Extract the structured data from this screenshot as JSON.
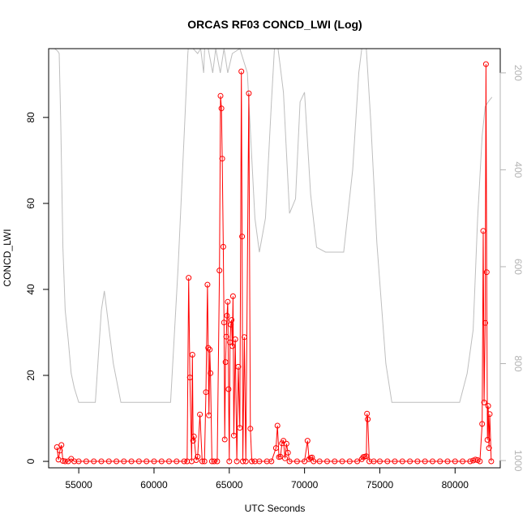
{
  "chart_data": {
    "type": "line",
    "title": "ORCAS RF03 CONCD_LWI (Log)",
    "xlabel": "UTC Seconds",
    "ylabel": "CONCD_LWI",
    "xlim": [
      53000,
      83000
    ],
    "ylim": [
      -1.5,
      96
    ],
    "x_ticks": [
      55000,
      60000,
      65000,
      70000,
      75000,
      80000
    ],
    "y_ticks": [
      0,
      20,
      40,
      60,
      80
    ],
    "y2_ticks": [
      200,
      400,
      600,
      800,
      1000
    ],
    "y2_lim": [
      1015,
      150
    ],
    "grid": false,
    "series": [
      {
        "color": "#ff0000",
        "marker": "open-circle",
        "points": [
          [
            53550,
            3.3
          ],
          [
            53650,
            0.4
          ],
          [
            53750,
            2.5
          ],
          [
            53850,
            3.8
          ],
          [
            53950,
            0.1
          ],
          [
            54100,
            0
          ],
          [
            54300,
            0
          ],
          [
            54500,
            0.6
          ],
          [
            54700,
            0
          ],
          [
            55000,
            0
          ],
          [
            55500,
            0
          ],
          [
            56000,
            0
          ],
          [
            56500,
            0
          ],
          [
            57000,
            0
          ],
          [
            57500,
            0
          ],
          [
            58000,
            0
          ],
          [
            58500,
            0
          ],
          [
            59000,
            0
          ],
          [
            59500,
            0
          ],
          [
            60000,
            0
          ],
          [
            60500,
            0
          ],
          [
            61000,
            0
          ],
          [
            61500,
            0
          ],
          [
            62000,
            0
          ],
          [
            62200,
            0
          ],
          [
            62300,
            42.7
          ],
          [
            62380,
            19.5
          ],
          [
            62500,
            0
          ],
          [
            62550,
            24.8
          ],
          [
            62600,
            4.8
          ],
          [
            62650,
            5.8
          ],
          [
            62800,
            0.3
          ],
          [
            62900,
            1.1
          ],
          [
            63050,
            10.9
          ],
          [
            63200,
            0
          ],
          [
            63350,
            0
          ],
          [
            63450,
            16.1
          ],
          [
            63550,
            41.1
          ],
          [
            63600,
            26.4
          ],
          [
            63650,
            10.7
          ],
          [
            63700,
            26.0
          ],
          [
            63750,
            20.5
          ],
          [
            63850,
            0
          ],
          [
            64000,
            0
          ],
          [
            64200,
            0
          ],
          [
            64350,
            44.4
          ],
          [
            64420,
            85.0
          ],
          [
            64480,
            82.1
          ],
          [
            64530,
            70.4
          ],
          [
            64600,
            49.9
          ],
          [
            64650,
            32.3
          ],
          [
            64700,
            5.1
          ],
          [
            64750,
            23.1
          ],
          [
            64800,
            29.0
          ],
          [
            64850,
            33.9
          ],
          [
            64900,
            37.1
          ],
          [
            64950,
            16.8
          ],
          [
            65000,
            0
          ],
          [
            65050,
            27.7
          ],
          [
            65100,
            31.8
          ],
          [
            65150,
            32.9
          ],
          [
            65200,
            26.8
          ],
          [
            65250,
            38.4
          ],
          [
            65300,
            6.0
          ],
          [
            65400,
            28.4
          ],
          [
            65500,
            0
          ],
          [
            65600,
            22.0
          ],
          [
            65700,
            7.8
          ],
          [
            65800,
            90.7
          ],
          [
            65850,
            52.3
          ],
          [
            65900,
            0
          ],
          [
            66000,
            28.9
          ],
          [
            66100,
            0
          ],
          [
            66300,
            85.6
          ],
          [
            66400,
            7.6
          ],
          [
            66500,
            0
          ],
          [
            66700,
            0
          ],
          [
            67000,
            0
          ],
          [
            67500,
            0
          ],
          [
            67800,
            0
          ],
          [
            68100,
            3.1
          ],
          [
            68200,
            8.3
          ],
          [
            68300,
            1.0
          ],
          [
            68400,
            1.1
          ],
          [
            68500,
            4.2
          ],
          [
            68600,
            4.8
          ],
          [
            68700,
            0.7
          ],
          [
            68800,
            4.1
          ],
          [
            68900,
            2.0
          ],
          [
            69000,
            0
          ],
          [
            69500,
            0
          ],
          [
            70000,
            0
          ],
          [
            70200,
            4.8
          ],
          [
            70300,
            0.5
          ],
          [
            70400,
            0.8
          ],
          [
            70500,
            0.9
          ],
          [
            70600,
            0
          ],
          [
            71000,
            0
          ],
          [
            71500,
            0
          ],
          [
            72000,
            0
          ],
          [
            72500,
            0
          ],
          [
            73000,
            0
          ],
          [
            73500,
            0
          ],
          [
            73800,
            0.5
          ],
          [
            73900,
            1.0
          ],
          [
            74000,
            1.1
          ],
          [
            74100,
            1.2
          ],
          [
            74150,
            11.1
          ],
          [
            74200,
            9.8
          ],
          [
            74300,
            0
          ],
          [
            74600,
            0
          ],
          [
            75000,
            0
          ],
          [
            75500,
            0
          ],
          [
            76000,
            0
          ],
          [
            76500,
            0
          ],
          [
            77000,
            0
          ],
          [
            77500,
            0
          ],
          [
            78000,
            0
          ],
          [
            78500,
            0
          ],
          [
            79000,
            0
          ],
          [
            79500,
            0
          ],
          [
            80000,
            0
          ],
          [
            80500,
            0
          ],
          [
            81000,
            0
          ],
          [
            81200,
            0.2
          ],
          [
            81350,
            0.4
          ],
          [
            81500,
            0.3
          ],
          [
            81650,
            0
          ],
          [
            81800,
            8.7
          ],
          [
            81870,
            53.6
          ],
          [
            81930,
            13.7
          ],
          [
            82000,
            32.2
          ],
          [
            82050,
            92.4
          ],
          [
            82100,
            44.0
          ],
          [
            82150,
            5.0
          ],
          [
            82200,
            12.9
          ],
          [
            82250,
            3.1
          ],
          [
            82300,
            11.0
          ],
          [
            82400,
            0
          ]
        ]
      },
      {
        "color": "#bebebe",
        "axis": "right",
        "points": [
          [
            53400,
            150
          ],
          [
            53600,
            155
          ],
          [
            53700,
            160
          ],
          [
            53800,
            300
          ],
          [
            53950,
            560
          ],
          [
            54100,
            690
          ],
          [
            54300,
            750
          ],
          [
            54500,
            820
          ],
          [
            54700,
            850
          ],
          [
            55000,
            880
          ],
          [
            55500,
            880
          ],
          [
            56100,
            880
          ],
          [
            56500,
            690
          ],
          [
            56700,
            650
          ],
          [
            56900,
            700
          ],
          [
            57300,
            800
          ],
          [
            57800,
            880
          ],
          [
            58500,
            880
          ],
          [
            59500,
            880
          ],
          [
            60500,
            880
          ],
          [
            61100,
            880
          ],
          [
            61600,
            600
          ],
          [
            62000,
            330
          ],
          [
            62250,
            160
          ],
          [
            62350,
            120
          ],
          [
            62600,
            150
          ],
          [
            62900,
            160
          ],
          [
            63100,
            150
          ],
          [
            63300,
            200
          ],
          [
            63400,
            120
          ],
          [
            63600,
            150
          ],
          [
            63900,
            200
          ],
          [
            64100,
            150
          ],
          [
            64400,
            200
          ],
          [
            64650,
            150
          ],
          [
            64900,
            200
          ],
          [
            65200,
            160
          ],
          [
            65700,
            150
          ],
          [
            66200,
            200
          ],
          [
            66700,
            500
          ],
          [
            67000,
            570
          ],
          [
            67400,
            500
          ],
          [
            67800,
            260
          ],
          [
            68000,
            150
          ],
          [
            68200,
            140
          ],
          [
            68600,
            240
          ],
          [
            69000,
            490
          ],
          [
            69400,
            460
          ],
          [
            69700,
            260
          ],
          [
            70000,
            240
          ],
          [
            70400,
            450
          ],
          [
            70800,
            560
          ],
          [
            71400,
            570
          ],
          [
            72000,
            570
          ],
          [
            72600,
            570
          ],
          [
            73200,
            400
          ],
          [
            73600,
            200
          ],
          [
            73800,
            150
          ],
          [
            74100,
            150
          ],
          [
            74400,
            300
          ],
          [
            74800,
            550
          ],
          [
            75400,
            800
          ],
          [
            75800,
            880
          ],
          [
            76500,
            880
          ],
          [
            77500,
            880
          ],
          [
            78500,
            880
          ],
          [
            79500,
            880
          ],
          [
            80300,
            880
          ],
          [
            80800,
            820
          ],
          [
            81200,
            730
          ],
          [
            81500,
            500
          ],
          [
            81800,
            330
          ],
          [
            82000,
            270
          ],
          [
            82200,
            260
          ],
          [
            82450,
            250
          ]
        ]
      }
    ]
  }
}
